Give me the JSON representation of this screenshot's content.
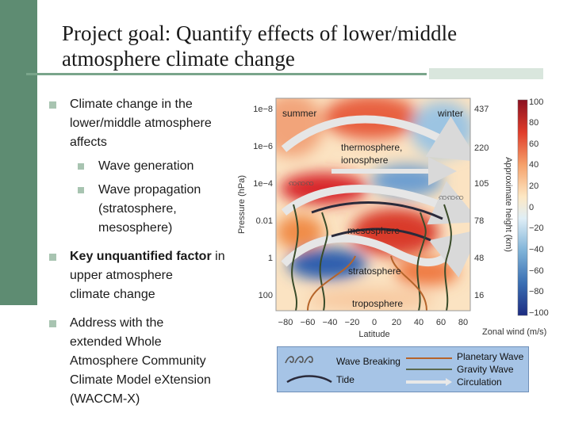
{
  "slide": {
    "title_line1": "Project goal: Quantify effects of lower/middle",
    "title_line2": "atmosphere climate change"
  },
  "bullets": {
    "b1_line1": "Climate change in the",
    "b1_line2": "lower/middle atmosphere",
    "b1_line3": "affects",
    "sub1": "Wave generation",
    "sub2_line1": "Wave propagation",
    "sub2_line2": "(stratosphere,",
    "sub2_line3": "mesosphere)",
    "b2_bold": "Key unquantified factor",
    "b2_rest": " in",
    "b2_line2": "upper atmosphere",
    "b2_line3": "climate change",
    "b3_line1": "Address with the",
    "b3_line2": "extended Whole",
    "b3_line3": "Atmosphere Community",
    "b3_line4": "Climate Model eXtension",
    "b3_line5": "(WACCM-X)"
  },
  "figure": {
    "label_summer": "summer",
    "label_winter": "winter",
    "label_thermo1": "thermosphere,",
    "label_thermo2": "ionosphere",
    "label_meso": "mesosphere",
    "label_strato": "stratosphere",
    "label_tropo": "troposphere",
    "p1": "1e−8",
    "p2": "1e−6",
    "p3": "1e−4",
    "p4": "0.01",
    "p5": "1",
    "p6": "100",
    "y_label": "Pressure (hPa)",
    "h1": "437",
    "h2": "220",
    "h3": "105",
    "h4": "78",
    "h5": "48",
    "h6": "16",
    "h_label": "Approximate height (km)",
    "lat": [
      "−80",
      "−60",
      "−40",
      "−20",
      "0",
      "20",
      "40",
      "60",
      "80"
    ],
    "x_label": "Latitude",
    "cbar": [
      "100",
      "80",
      "60",
      "40",
      "20",
      "0",
      "−20",
      "−40",
      "−60",
      "−80",
      "−100"
    ],
    "cbar_label": "Zonal wind (m/s)"
  },
  "legend": {
    "wave_breaking": "Wave Breaking",
    "tide": "Tide",
    "planetary": "Planetary Wave",
    "gravity": "Gravity Wave",
    "circulation": "Circulation"
  },
  "colors": {
    "accent_green": "#5e8c72",
    "legend_bg": "#a6c4e6"
  }
}
